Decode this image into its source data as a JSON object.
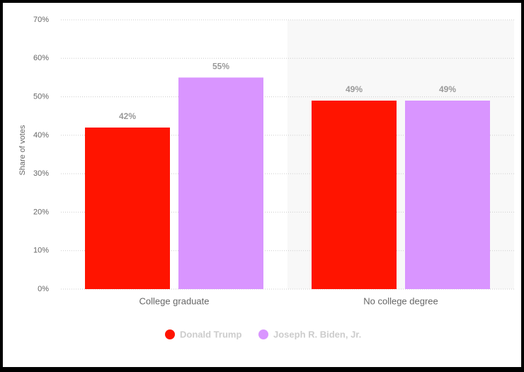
{
  "chart_data": {
    "type": "bar",
    "y_label": "Share of votes",
    "categories": [
      "College graduate",
      "No college degree"
    ],
    "series": [
      {
        "name": "Donald Trump",
        "color": "#ff1400",
        "values": [
          42,
          49
        ],
        "value_labels": [
          "42%",
          "49%"
        ]
      },
      {
        "name": "Joseph R. Biden, Jr.",
        "color": "#d995ff",
        "values": [
          55,
          49
        ],
        "value_labels": [
          "55%",
          "49%"
        ]
      }
    ],
    "ylim": [
      0,
      70
    ],
    "yticks": [
      {
        "value": 0,
        "label": "0%"
      },
      {
        "value": 10,
        "label": "10%"
      },
      {
        "value": 20,
        "label": "20%"
      },
      {
        "value": 30,
        "label": "30%"
      },
      {
        "value": 40,
        "label": "40%"
      },
      {
        "value": 50,
        "label": "50%"
      },
      {
        "value": 60,
        "label": "60%"
      },
      {
        "value": 70,
        "label": "70%"
      }
    ],
    "grid": true
  }
}
